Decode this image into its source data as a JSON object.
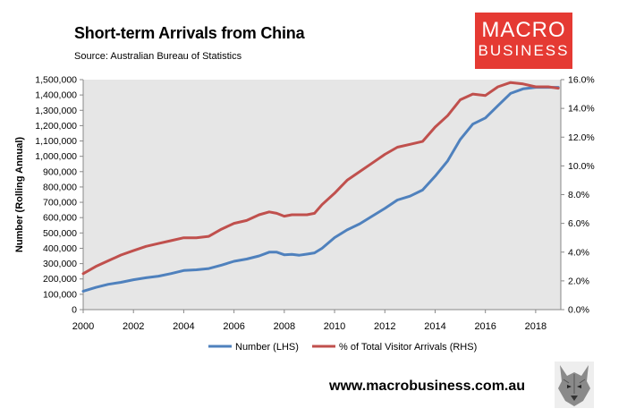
{
  "header": {
    "title": "Short-term Arrivals from China",
    "source": "Source: Australian Bureau of Statistics"
  },
  "logo": {
    "line1": "MACRO",
    "line2": "BUSINESS"
  },
  "footer": {
    "url": "www.macrobusiness.com.au"
  },
  "colors": {
    "number": "#4f81bd",
    "percent": "#c0504d",
    "plot_bg": "#e6e6e6"
  },
  "chart_data": {
    "type": "line",
    "title": "Short-term Arrivals from China",
    "ylabel": "Number (Rolling Annual)",
    "xlim": [
      2000,
      2019
    ],
    "x_ticks": [
      "2000",
      "2002",
      "2004",
      "2006",
      "2008",
      "2010",
      "2012",
      "2014",
      "2016",
      "2018"
    ],
    "ylim_left": [
      0,
      1500000
    ],
    "y_ticks_left": [
      "0",
      "100,000",
      "200,000",
      "300,000",
      "400,000",
      "500,000",
      "600,000",
      "700,000",
      "800,000",
      "900,000",
      "1,000,000",
      "1,100,000",
      "1,200,000",
      "1,300,000",
      "1,400,000",
      "1,500,000"
    ],
    "ylim_right": [
      0,
      16
    ],
    "y_ticks_right": [
      "0.0%",
      "2.0%",
      "4.0%",
      "6.0%",
      "8.0%",
      "10.0%",
      "12.0%",
      "14.0%",
      "16.0%"
    ],
    "legend_position": "bottom",
    "series": [
      {
        "name": "Number (LHS)",
        "axis": "left",
        "x": [
          2000,
          2000.5,
          2001,
          2001.5,
          2002,
          2002.5,
          2003,
          2003.5,
          2004,
          2004.5,
          2005,
          2005.5,
          2006,
          2006.5,
          2007,
          2007.4,
          2007.7,
          2008,
          2008.3,
          2008.6,
          2008.9,
          2009.2,
          2009.5,
          2010,
          2010.5,
          2011,
          2011.5,
          2012,
          2012.5,
          2013,
          2013.5,
          2014,
          2014.5,
          2015,
          2015.5,
          2016,
          2016.5,
          2017,
          2017.5,
          2018,
          2018.5,
          2018.9
        ],
        "values": [
          120000,
          145000,
          165000,
          178000,
          195000,
          208000,
          218000,
          235000,
          255000,
          260000,
          268000,
          290000,
          315000,
          330000,
          350000,
          375000,
          375000,
          358000,
          360000,
          355000,
          362000,
          370000,
          400000,
          470000,
          520000,
          560000,
          610000,
          660000,
          715000,
          740000,
          780000,
          870000,
          970000,
          1110000,
          1210000,
          1250000,
          1330000,
          1410000,
          1440000,
          1450000,
          1450000,
          1450000
        ]
      },
      {
        "name": "% of Total Visitor Arrivals (RHS)",
        "axis": "right",
        "x": [
          2000,
          2000.5,
          2001,
          2001.5,
          2002,
          2002.5,
          2003,
          2003.5,
          2004,
          2004.5,
          2005,
          2005.5,
          2006,
          2006.5,
          2007,
          2007.4,
          2007.7,
          2008,
          2008.3,
          2008.6,
          2008.9,
          2009.2,
          2009.5,
          2010,
          2010.5,
          2011,
          2011.5,
          2012,
          2012.5,
          2013,
          2013.5,
          2014,
          2014.5,
          2015,
          2015.5,
          2016,
          2016.5,
          2017,
          2017.5,
          2018,
          2018.5,
          2018.9
        ],
        "values": [
          2.5,
          3.0,
          3.4,
          3.8,
          4.1,
          4.4,
          4.6,
          4.8,
          5.0,
          5.0,
          5.1,
          5.6,
          6.0,
          6.2,
          6.6,
          6.8,
          6.7,
          6.5,
          6.6,
          6.6,
          6.6,
          6.7,
          7.3,
          8.1,
          9.0,
          9.6,
          10.2,
          10.8,
          11.3,
          11.5,
          11.7,
          12.7,
          13.5,
          14.6,
          15.0,
          14.9,
          15.5,
          15.8,
          15.7,
          15.5,
          15.5,
          15.4
        ]
      }
    ]
  }
}
